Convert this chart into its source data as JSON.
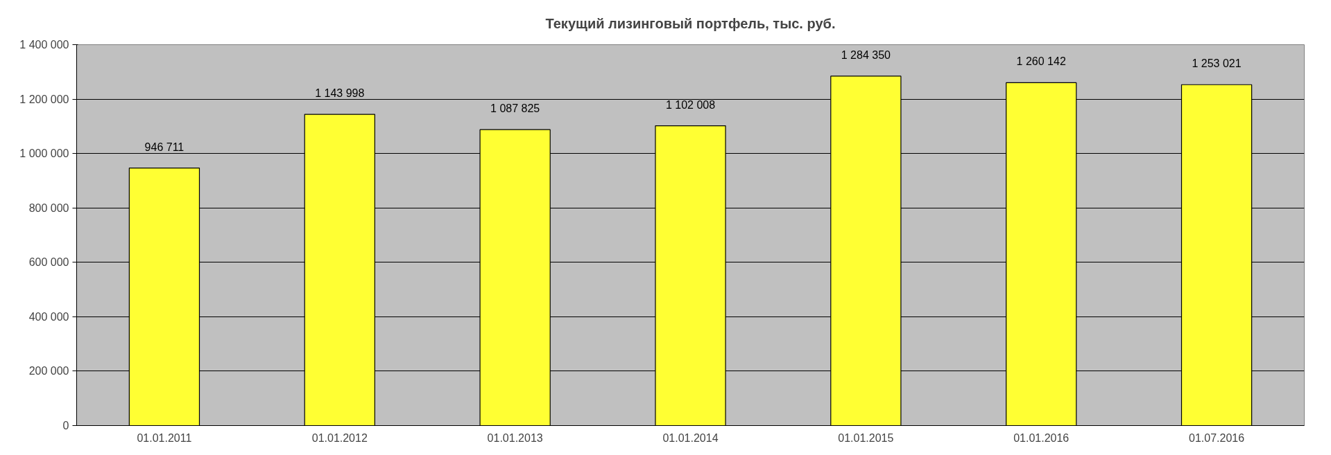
{
  "chart_data": {
    "type": "bar",
    "title": "Текущий лизинговый портфель, тыс. руб.",
    "categories": [
      "01.01.2011",
      "01.01.2012",
      "01.01.2013",
      "01.01.2014",
      "01.01.2015",
      "01.01.2016",
      "01.07.2016"
    ],
    "values": [
      946711,
      1143998,
      1087825,
      1102008,
      1284350,
      1260142,
      1253021
    ],
    "value_labels": [
      "946 711",
      "1 143 998",
      "1 087 825",
      "1 102 008",
      "1 284 350",
      "1 260 142",
      "1 253 021"
    ],
    "color": "#ffff33",
    "ylim": [
      0,
      1400000
    ],
    "yticks": [
      0,
      {
        "value": 200000,
        "label": "200 000"
      },
      {
        "value": 400000,
        "label": "400 000"
      },
      {
        "value": 600000,
        "label": "600 000"
      },
      {
        "value": 800000,
        "label": "800 000"
      },
      {
        "value": 1000000,
        "label": "1 000 000"
      },
      {
        "value": 1200000,
        "label": "1 200 000"
      },
      {
        "value": 1400000,
        "label": "1 400 000"
      }
    ],
    "grid": "y"
  }
}
